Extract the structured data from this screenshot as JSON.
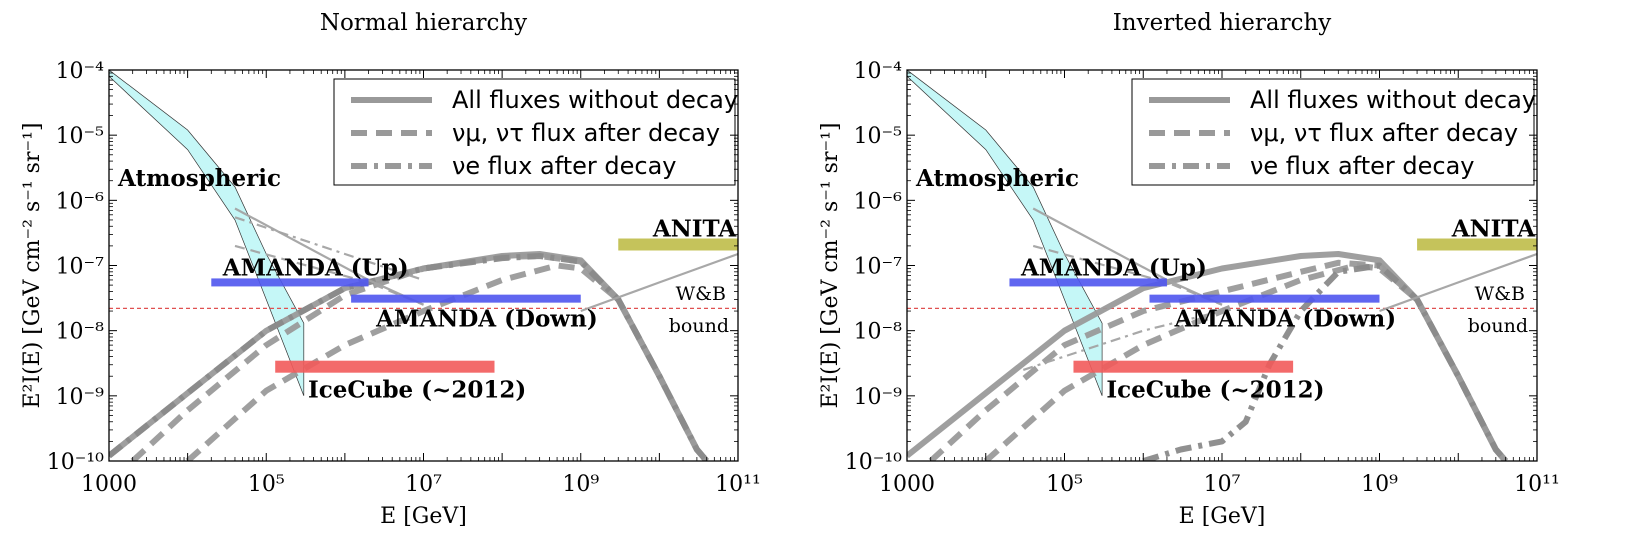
{
  "chart_data": [
    {
      "type": "line",
      "title": "Normal hierarchy",
      "xlabel": "E [GeV]",
      "ylabel": "E²I(E)  [GeV cm⁻² s⁻¹ sr⁻¹]",
      "xscale": "log",
      "yscale": "log",
      "xlim": [
        1000,
        100000000000.0
      ],
      "ylim": [
        1e-10,
        0.0001
      ],
      "x_ticks": [
        {
          "value": 1000,
          "label": "1000"
        },
        {
          "value": 100000.0,
          "label": "10⁵"
        },
        {
          "value": 10000000.0,
          "label": "10⁷"
        },
        {
          "value": 1000000000.0,
          "label": "10⁹"
        },
        {
          "value": 100000000000.0,
          "label": "10¹¹"
        }
      ],
      "y_ticks": [
        {
          "value": 1e-10,
          "label": "10⁻¹⁰"
        },
        {
          "value": 1e-09,
          "label": "10⁻⁹"
        },
        {
          "value": 1e-08,
          "label": "10⁻⁸"
        },
        {
          "value": 1e-07,
          "label": "10⁻⁷"
        },
        {
          "value": 1e-06,
          "label": "10⁻⁶"
        },
        {
          "value": 1e-05,
          "label": "10⁻⁵"
        },
        {
          "value": 0.0001,
          "label": "10⁻⁴"
        }
      ],
      "legend": {
        "position": "top-right",
        "entries": [
          {
            "label": "All fluxes without decay",
            "style": "solid"
          },
          {
            "label": "νμ, ντ  flux after decay",
            "style": "dashed"
          },
          {
            "label": "νe  flux after decay",
            "style": "dashdot"
          }
        ]
      },
      "series": [
        {
          "name": "All fluxes without decay",
          "style": "solid",
          "points": [
            [
              1000.0,
              1.2e-10
            ],
            [
              10000.0,
              1.1e-09
            ],
            [
              100000.0,
              1e-08
            ],
            [
              1000000.0,
              4.5e-08
            ],
            [
              10000000.0,
              9e-08
            ],
            [
              100000000.0,
              1.4e-07
            ],
            [
              300000000.0,
              1.5e-07
            ],
            [
              1000000000.0,
              1.2e-07
            ],
            [
              3000000000.0,
              3e-08
            ],
            [
              10000000000.0,
              2e-09
            ],
            [
              30000000000.0,
              1.5e-10
            ],
            [
              40000000000.0,
              1e-10
            ]
          ]
        },
        {
          "name": "νμ, ντ flux after decay (lower)",
          "style": "dashed",
          "points": [
            [
              10000.0,
              1e-10
            ],
            [
              100000.0,
              1.2e-09
            ],
            [
              1000000.0,
              6e-09
            ],
            [
              10000000.0,
              2e-08
            ],
            [
              100000000.0,
              6e-08
            ],
            [
              500000000.0,
              1e-07
            ],
            [
              1000000000.0,
              9e-08
            ],
            [
              3000000000.0,
              3e-08
            ],
            [
              10000000000.0,
              2e-09
            ],
            [
              30000000000.0,
              1.5e-10
            ],
            [
              40000000000.0,
              1e-10
            ]
          ]
        },
        {
          "name": "νμ, ντ flux after decay (upper)",
          "style": "dashed",
          "points": [
            [
              2000.0,
              1e-10
            ],
            [
              10000.0,
              6e-10
            ],
            [
              100000.0,
              6e-09
            ],
            [
              1000000.0,
              3.5e-08
            ],
            [
              10000000.0,
              9e-08
            ],
            [
              100000000.0,
              1.35e-07
            ],
            [
              300000000.0,
              1.4e-07
            ],
            [
              1000000000.0,
              1.15e-07
            ],
            [
              3000000000.0,
              3e-08
            ],
            [
              10000000000.0,
              2e-09
            ],
            [
              30000000000.0,
              1.5e-10
            ],
            [
              40000000000.0,
              1e-10
            ]
          ]
        },
        {
          "name": "νe flux after decay",
          "style": "dashdot",
          "points": [
            [
              1000.0,
              1.2e-10
            ],
            [
              10000.0,
              1.1e-09
            ],
            [
              100000.0,
              1e-08
            ],
            [
              1000000.0,
              4.5e-08
            ],
            [
              10000000.0,
              9e-08
            ],
            [
              100000000.0,
              1.3e-07
            ],
            [
              300000000.0,
              1.4e-07
            ],
            [
              1000000000.0,
              1.15e-07
            ],
            [
              3000000000.0,
              3e-08
            ],
            [
              10000000000.0,
              2e-09
            ],
            [
              30000000000.0,
              1.5e-10
            ],
            [
              40000000000.0,
              1e-10
            ]
          ]
        },
        {
          "name": "Upper line, solid thin",
          "style": "thin-solid",
          "points": [
            [
              40000.0,
              7.5e-07
            ],
            [
              2000000.0,
              6e-08
            ],
            [
              10000000.0,
              2.5e-08
            ]
          ]
        },
        {
          "name": "Upper line, dash-dot thin",
          "style": "thin-dashdot",
          "points": [
            [
              40000.0,
              5.5e-07
            ],
            [
              1000000.0,
              1.5e-07
            ],
            [
              10000000.0,
              6e-08
            ]
          ]
        },
        {
          "name": "Upper line, dashed thin",
          "style": "thin-dashed",
          "points": [
            [
              40000.0,
              2e-07
            ],
            [
              2000000.0,
              5.5e-08
            ],
            [
              10000000.0,
              2.5e-08
            ]
          ]
        },
        {
          "name": "W&B bound",
          "style": "thin-solid",
          "points": [
            [
              1000000000.0,
              2e-08
            ],
            [
              10000000000.0,
              5.5e-08
            ],
            [
              100000000000.0,
              1.5e-07
            ]
          ]
        }
      ],
      "horizontal_line": {
        "y": 2.2e-08,
        "style": "dashed-red"
      },
      "atmospheric_band": {
        "upper": [
          [
            1000,
            0.0001
          ],
          [
            10000.0,
            1.2e-05
          ],
          [
            40000.0,
            1.6e-06
          ],
          [
            100000.0,
            1.5e-07
          ],
          [
            300000.0,
            1.3e-08
          ]
        ],
        "lower": [
          [
            1000,
            8e-05
          ],
          [
            10000.0,
            6e-06
          ],
          [
            40000.0,
            5e-07
          ],
          [
            100000.0,
            3e-08
          ],
          [
            300000.0,
            1e-09
          ]
        ]
      },
      "bands": [
        {
          "label": "AMANDA (Up)",
          "x": [
            20000.0,
            2000000.0
          ],
          "y": 5.5e-08,
          "color": "#4f55ee"
        },
        {
          "label": "AMANDA (Down)",
          "x": [
            1200000.0,
            1000000000.0
          ],
          "y": 3.1e-08,
          "color": "#4f55ee"
        },
        {
          "label": "IceCube (~2012)",
          "x": [
            130000.0,
            80000000.0
          ],
          "y": 2.8e-09,
          "color": "#f25a5a"
        },
        {
          "label": "ANITA",
          "x": [
            3000000000.0,
            100000000000.0
          ],
          "y": 2.1e-07,
          "color": "#bfbd49"
        }
      ],
      "annotations": {
        "atmospheric": "Atmospheric",
        "wb": "W&B",
        "bound": "bound"
      }
    },
    {
      "type": "line",
      "title": "Inverted hierarchy",
      "xlabel": "E [GeV]",
      "ylabel": "E²I(E)  [GeV cm⁻² s⁻¹ sr⁻¹]",
      "xscale": "log",
      "yscale": "log",
      "xlim": [
        1000,
        100000000000.0
      ],
      "ylim": [
        1e-10,
        0.0001
      ],
      "x_ticks": [
        {
          "value": 1000,
          "label": "1000"
        },
        {
          "value": 100000.0,
          "label": "10⁵"
        },
        {
          "value": 10000000.0,
          "label": "10⁷"
        },
        {
          "value": 1000000000.0,
          "label": "10⁹"
        },
        {
          "value": 100000000000.0,
          "label": "10¹¹"
        }
      ],
      "y_ticks": [
        {
          "value": 1e-10,
          "label": "10⁻¹⁰"
        },
        {
          "value": 1e-09,
          "label": "10⁻⁹"
        },
        {
          "value": 1e-08,
          "label": "10⁻⁸"
        },
        {
          "value": 1e-07,
          "label": "10⁻⁷"
        },
        {
          "value": 1e-06,
          "label": "10⁻⁶"
        },
        {
          "value": 1e-05,
          "label": "10⁻⁵"
        },
        {
          "value": 0.0001,
          "label": "10⁻⁴"
        }
      ],
      "legend": {
        "position": "top-right",
        "entries": [
          {
            "label": "All fluxes without decay",
            "style": "solid"
          },
          {
            "label": "νμ, ντ  flux after decay",
            "style": "dashed"
          },
          {
            "label": "νe  flux after decay",
            "style": "dashdot"
          }
        ]
      },
      "series": [
        {
          "name": "All fluxes without decay",
          "style": "solid",
          "points": [
            [
              1000.0,
              1.2e-10
            ],
            [
              10000.0,
              1.1e-09
            ],
            [
              100000.0,
              1e-08
            ],
            [
              1000000.0,
              4.5e-08
            ],
            [
              10000000.0,
              9e-08
            ],
            [
              100000000.0,
              1.4e-07
            ],
            [
              300000000.0,
              1.5e-07
            ],
            [
              1000000000.0,
              1.2e-07
            ],
            [
              3000000000.0,
              3e-08
            ],
            [
              10000000000.0,
              2e-09
            ],
            [
              30000000000.0,
              1.5e-10
            ],
            [
              40000000000.0,
              1e-10
            ]
          ]
        },
        {
          "name": "νμ, ντ flux after decay (lower)",
          "style": "dashed",
          "points": [
            [
              10000.0,
              1e-10
            ],
            [
              100000.0,
              1.2e-09
            ],
            [
              1000000.0,
              6e-09
            ],
            [
              10000000.0,
              2e-08
            ],
            [
              100000000.0,
              6e-08
            ],
            [
              500000000.0,
              1e-07
            ],
            [
              1000000000.0,
              9e-08
            ],
            [
              3000000000.0,
              3e-08
            ],
            [
              10000000000.0,
              2e-09
            ],
            [
              30000000000.0,
              1.5e-10
            ],
            [
              40000000000.0,
              1e-10
            ]
          ]
        },
        {
          "name": "νμ, ντ flux after decay (upper)",
          "style": "dashed",
          "points": [
            [
              2000.0,
              1e-10
            ],
            [
              10000.0,
              6e-10
            ],
            [
              100000.0,
              6e-09
            ],
            [
              1000000.0,
              2e-08
            ],
            [
              10000000.0,
              4e-08
            ],
            [
              100000000.0,
              8e-08
            ],
            [
              300000000.0,
              1.1e-07
            ],
            [
              1000000000.0,
              1e-07
            ],
            [
              3000000000.0,
              3e-08
            ],
            [
              10000000000.0,
              2e-09
            ],
            [
              30000000000.0,
              1.5e-10
            ],
            [
              40000000000.0,
              1e-10
            ]
          ]
        },
        {
          "name": "νe flux after decay",
          "style": "dashdot",
          "points": [
            [
              1000000.0,
              1e-10
            ],
            [
              3000000.0,
              1.5e-10
            ],
            [
              10000000.0,
              2e-10
            ],
            [
              20000000.0,
              4e-10
            ],
            [
              40000000.0,
              3e-09
            ],
            [
              100000000.0,
              2e-08
            ],
            [
              300000000.0,
              8e-08
            ],
            [
              1000000000.0,
              1e-07
            ],
            [
              3000000000.0,
              3e-08
            ],
            [
              10000000000.0,
              2e-09
            ],
            [
              30000000000.0,
              1.5e-10
            ],
            [
              40000000000.0,
              1e-10
            ]
          ]
        },
        {
          "name": "Upper line, solid thin",
          "style": "thin-solid",
          "points": [
            [
              40000.0,
              7.5e-07
            ],
            [
              2000000.0,
              6e-08
            ],
            [
              10000000.0,
              2.5e-08
            ]
          ]
        },
        {
          "name": "Upper line, dashed thin",
          "style": "thin-dashed",
          "points": [
            [
              40000.0,
              2e-07
            ],
            [
              2000000.0,
              5.5e-08
            ],
            [
              10000000.0,
              2.5e-08
            ]
          ]
        },
        {
          "name": "Lower line, dash-dot thin",
          "style": "thin-dashdot",
          "points": [
            [
              30000.0,
              2.5e-09
            ],
            [
              1000000.0,
              1e-08
            ],
            [
              10000000.0,
              2e-08
            ]
          ]
        },
        {
          "name": "W&B bound",
          "style": "thin-solid",
          "points": [
            [
              1000000000.0,
              2e-08
            ],
            [
              10000000000.0,
              5.5e-08
            ],
            [
              100000000000.0,
              1.5e-07
            ]
          ]
        }
      ],
      "horizontal_line": {
        "y": 2.2e-08,
        "style": "dashed-red"
      },
      "atmospheric_band": {
        "upper": [
          [
            1000,
            0.0001
          ],
          [
            10000.0,
            1.2e-05
          ],
          [
            40000.0,
            1.6e-06
          ],
          [
            100000.0,
            1.5e-07
          ],
          [
            300000.0,
            1.3e-08
          ]
        ],
        "lower": [
          [
            1000,
            8e-05
          ],
          [
            10000.0,
            6e-06
          ],
          [
            40000.0,
            5e-07
          ],
          [
            100000.0,
            3e-08
          ],
          [
            300000.0,
            1e-09
          ]
        ]
      },
      "bands": [
        {
          "label": "AMANDA (Up)",
          "x": [
            20000.0,
            2000000.0
          ],
          "y": 5.5e-08,
          "color": "#4f55ee"
        },
        {
          "label": "AMANDA (Down)",
          "x": [
            1200000.0,
            1000000000.0
          ],
          "y": 3.1e-08,
          "color": "#4f55ee"
        },
        {
          "label": "IceCube (~2012)",
          "x": [
            130000.0,
            80000000.0
          ],
          "y": 2.8e-09,
          "color": "#f25a5a"
        },
        {
          "label": "ANITA",
          "x": [
            3000000000.0,
            100000000000.0
          ],
          "y": 2.1e-07,
          "color": "#bfbd49"
        }
      ],
      "annotations": {
        "atmospheric": "Atmospheric",
        "wb": "W&B",
        "bound": "bound"
      }
    }
  ]
}
